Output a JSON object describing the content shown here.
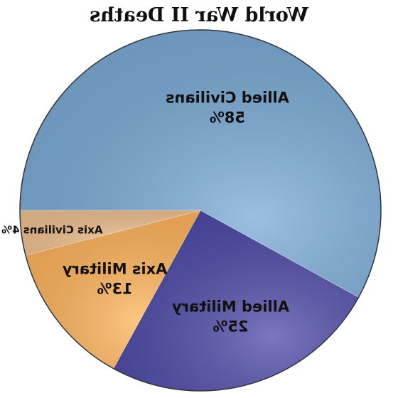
{
  "chart_data": {
    "type": "pie",
    "title": "World War II Deaths",
    "slices": [
      {
        "name": "Allied Civilians",
        "value": 58,
        "value_label": "58%",
        "color": "#7aaad6"
      },
      {
        "name": "Allied Military",
        "value": 25,
        "value_label": "25%",
        "color": "#4e4aa8"
      },
      {
        "name": "Axis Military",
        "value": 13,
        "value_label": "13%",
        "color": "#ffb45c"
      },
      {
        "name": "Axis Civilians",
        "value": 4,
        "value_label": "4%",
        "color": "#f0c090"
      }
    ],
    "legend": "none",
    "image_mirrored": true
  }
}
